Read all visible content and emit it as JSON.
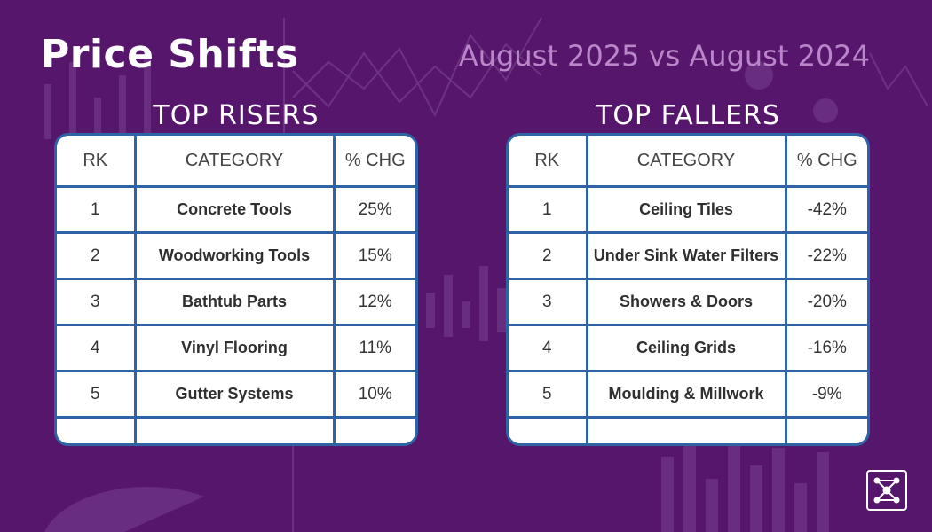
{
  "title": "Price Shifts",
  "subtitle": "August 2025 vs August 2024",
  "columns": {
    "rank": "RK",
    "category": "CATEGORY",
    "change": "% CHG"
  },
  "risers": {
    "heading": "TOP RISERS",
    "rows": [
      {
        "rank": "1",
        "category": "Concrete Tools",
        "change": "25%"
      },
      {
        "rank": "2",
        "category": "Woodworking Tools",
        "change": "15%"
      },
      {
        "rank": "3",
        "category": "Bathtub Parts",
        "change": "12%"
      },
      {
        "rank": "4",
        "category": "Vinyl Flooring",
        "change": "11%"
      },
      {
        "rank": "5",
        "category": "Gutter Systems",
        "change": "10%"
      }
    ]
  },
  "fallers": {
    "heading": "TOP FALLERS",
    "rows": [
      {
        "rank": "1",
        "category": "Ceiling Tiles",
        "change": "-42%"
      },
      {
        "rank": "2",
        "category": "Under Sink Water Filters",
        "change": "-22%"
      },
      {
        "rank": "3",
        "category": "Showers & Doors",
        "change": "-20%"
      },
      {
        "rank": "4",
        "category": "Ceiling Grids",
        "change": "-16%"
      },
      {
        "rank": "5",
        "category": "Moulding & Millwork",
        "change": "-9%"
      }
    ]
  },
  "chart_data": [
    {
      "type": "table",
      "title": "TOP RISERS",
      "columns": [
        "RK",
        "CATEGORY",
        "% CHG"
      ],
      "rows": [
        [
          "1",
          "Concrete Tools",
          25
        ],
        [
          "2",
          "Woodworking Tools",
          15
        ],
        [
          "3",
          "Bathtub Parts",
          12
        ],
        [
          "4",
          "Vinyl Flooring",
          11
        ],
        [
          "5",
          "Gutter Systems",
          10
        ]
      ]
    },
    {
      "type": "table",
      "title": "TOP FALLERS",
      "columns": [
        "RK",
        "CATEGORY",
        "% CHG"
      ],
      "rows": [
        [
          "1",
          "Ceiling Tiles",
          -42
        ],
        [
          "2",
          "Under Sink Water Filters",
          -22
        ],
        [
          "3",
          "Showers & Doors",
          -20
        ],
        [
          "4",
          "Ceiling Grids",
          -16
        ],
        [
          "5",
          "Moulding & Millwork",
          -9
        ]
      ]
    }
  ],
  "colors": {
    "background": "#55166b",
    "table_border": "#2e63a5",
    "subtitle": "#b986c9"
  },
  "icons": {
    "logo": "network-nodes-logo-icon"
  }
}
